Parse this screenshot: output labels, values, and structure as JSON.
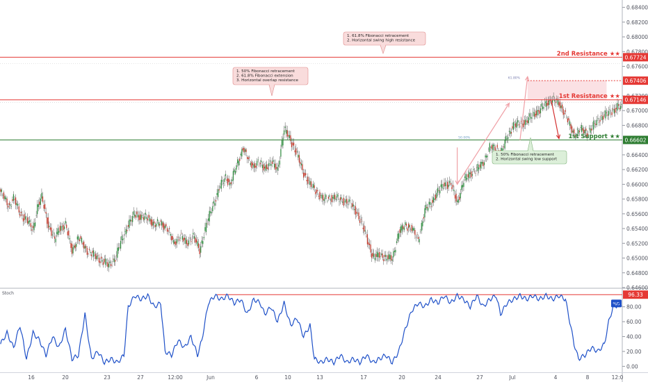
{
  "chart_data": [
    {
      "type": "candlestick",
      "title": "",
      "xlabel": "",
      "ylabel": "",
      "ylim": [
        0.646,
        0.685
      ],
      "y_ticks": [
        {
          "value": 0.684,
          "label": "0.68400"
        },
        {
          "value": 0.682,
          "label": "0.68200"
        },
        {
          "value": 0.68,
          "label": "0.68000"
        },
        {
          "value": 0.678,
          "label": "0.67800"
        },
        {
          "value": 0.676,
          "label": "0.67600"
        },
        {
          "value": 0.672,
          "label": "0.67200"
        },
        {
          "value": 0.67,
          "label": "0.67000"
        },
        {
          "value": 0.668,
          "label": "0.66800"
        },
        {
          "value": 0.664,
          "label": "0.66400"
        },
        {
          "value": 0.662,
          "label": "0.66200"
        },
        {
          "value": 0.66,
          "label": "0.66000"
        },
        {
          "value": 0.658,
          "label": "0.65800"
        },
        {
          "value": 0.656,
          "label": "0.65600"
        },
        {
          "value": 0.654,
          "label": "0.65400"
        },
        {
          "value": 0.652,
          "label": "0.65200"
        },
        {
          "value": 0.65,
          "label": "0.65000"
        },
        {
          "value": 0.648,
          "label": "0.64800"
        },
        {
          "value": 0.646,
          "label": "0.64600"
        }
      ],
      "x_ticks": [
        "16",
        "20",
        "23",
        "27",
        "12:00",
        "Jun",
        "6",
        "10",
        "13",
        "17",
        "20",
        "24",
        "27",
        "Jul",
        "4",
        "8",
        "12:0"
      ],
      "price_anchors": [
        [
          0,
          0.659
        ],
        [
          8,
          0.657
        ],
        [
          12,
          0.6582
        ],
        [
          18,
          0.656
        ],
        [
          25,
          0.655
        ],
        [
          30,
          0.6538
        ],
        [
          34,
          0.657
        ],
        [
          38,
          0.6582
        ],
        [
          44,
          0.6545
        ],
        [
          50,
          0.6525
        ],
        [
          54,
          0.654
        ],
        [
          60,
          0.6545
        ],
        [
          66,
          0.651
        ],
        [
          72,
          0.6528
        ],
        [
          80,
          0.651
        ],
        [
          90,
          0.65
        ],
        [
          100,
          0.649
        ],
        [
          106,
          0.65
        ],
        [
          112,
          0.6525
        ],
        [
          118,
          0.6545
        ],
        [
          124,
          0.656
        ],
        [
          130,
          0.6555
        ],
        [
          136,
          0.6555
        ],
        [
          142,
          0.6545
        ],
        [
          148,
          0.6548
        ],
        [
          154,
          0.654
        ],
        [
          160,
          0.652
        ],
        [
          166,
          0.653
        ],
        [
          172,
          0.652
        ],
        [
          178,
          0.653
        ],
        [
          184,
          0.651
        ],
        [
          190,
          0.6545
        ],
        [
          196,
          0.657
        ],
        [
          202,
          0.6595
        ],
        [
          208,
          0.661
        ],
        [
          212,
          0.66
        ],
        [
          218,
          0.6625
        ],
        [
          224,
          0.665
        ],
        [
          230,
          0.663
        ],
        [
          234,
          0.6625
        ],
        [
          238,
          0.663
        ],
        [
          244,
          0.6622
        ],
        [
          250,
          0.663
        ],
        [
          256,
          0.662
        ],
        [
          262,
          0.6675
        ],
        [
          268,
          0.666
        ],
        [
          274,
          0.664
        ],
        [
          280,
          0.6615
        ],
        [
          286,
          0.66
        ],
        [
          292,
          0.659
        ],
        [
          298,
          0.658
        ],
        [
          304,
          0.6582
        ],
        [
          310,
          0.6582
        ],
        [
          316,
          0.6578
        ],
        [
          322,
          0.6575
        ],
        [
          328,
          0.6565
        ],
        [
          334,
          0.6545
        ],
        [
          340,
          0.652
        ],
        [
          344,
          0.65
        ],
        [
          350,
          0.6505
        ],
        [
          356,
          0.65
        ],
        [
          362,
          0.65
        ],
        [
          368,
          0.6535
        ],
        [
          374,
          0.6545
        ],
        [
          380,
          0.654
        ],
        [
          386,
          0.6525
        ],
        [
          392,
          0.6565
        ],
        [
          398,
          0.6575
        ],
        [
          404,
          0.659
        ],
        [
          410,
          0.66
        ],
        [
          416,
          0.66
        ],
        [
          422,
          0.6575
        ],
        [
          428,
          0.6605
        ],
        [
          434,
          0.6615
        ],
        [
          440,
          0.662
        ],
        [
          446,
          0.663
        ],
        [
          452,
          0.665
        ],
        [
          458,
          0.665
        ],
        [
          462,
          0.664
        ],
        [
          468,
          0.6665
        ],
        [
          474,
          0.668
        ],
        [
          480,
          0.6682
        ],
        [
          486,
          0.6685
        ],
        [
          492,
          0.6695
        ],
        [
          498,
          0.67
        ],
        [
          504,
          0.671
        ],
        [
          510,
          0.6715
        ],
        [
          516,
          0.671
        ],
        [
          520,
          0.67
        ],
        [
          526,
          0.668
        ],
        [
          530,
          0.6668
        ],
        [
          536,
          0.6675
        ],
        [
          542,
          0.667
        ],
        [
          548,
          0.668
        ],
        [
          554,
          0.669
        ],
        [
          560,
          0.6695
        ],
        [
          566,
          0.67
        ],
        [
          570,
          0.6705
        ],
        [
          575,
          0.6703
        ]
      ],
      "levels": [
        {
          "label": "2nd Resistance ★★",
          "price_label": "0.67724",
          "value": 0.67724,
          "color": "#e53935"
        },
        {
          "label": "",
          "price_label": "0.67406",
          "value": 0.67406,
          "color": "#e53935"
        },
        {
          "label": "1st Resistance ★★",
          "price_label": "0.67146",
          "value": 0.67146,
          "color": "#e53935"
        },
        {
          "label": "1st Support ★★",
          "price_label": "0.66602",
          "value": 0.66602,
          "color": "#2e7d32"
        }
      ],
      "annotations": [
        {
          "lines": [
            "1. 61.8% Fibonacci retracement",
            "2. Horizontal swing high resistance"
          ],
          "style": "resistance"
        },
        {
          "lines": [
            "1. 50% Fibonacci retracement",
            "2. 61.8% Fibonacci extension",
            "3. Horizontal overlap resistance"
          ],
          "style": "resistance"
        },
        {
          "lines": [
            "1. 50% Fibonacci retracement",
            "2. Horizontal swing low support"
          ],
          "style": "support"
        }
      ],
      "fib_labels": [
        "61.80%",
        "50.00%"
      ]
    },
    {
      "type": "line",
      "title": "",
      "indicator": "Stoch",
      "series_label": "%D",
      "ylim": [
        -8,
        104
      ],
      "y_ticks": [
        {
          "value": 80,
          "label": "80.00"
        },
        {
          "value": 60,
          "label": "60.00"
        },
        {
          "value": 40,
          "label": "40.00"
        },
        {
          "value": 20,
          "label": "20.00"
        },
        {
          "value": 0,
          "label": "0.00"
        }
      ],
      "level": {
        "value": 96.33,
        "label": "96.33"
      },
      "x_ticks": [
        "16",
        "20",
        "23",
        "27",
        "12:00",
        "Jun",
        "6",
        "10",
        "13",
        "17",
        "20",
        "24",
        "27",
        "Jul",
        "4",
        "8",
        "12:0"
      ],
      "values_anchors": [
        [
          0,
          30
        ],
        [
          6,
          45
        ],
        [
          12,
          25
        ],
        [
          18,
          55
        ],
        [
          24,
          10
        ],
        [
          30,
          45
        ],
        [
          36,
          35
        ],
        [
          42,
          15
        ],
        [
          48,
          40
        ],
        [
          54,
          25
        ],
        [
          60,
          50
        ],
        [
          66,
          10
        ],
        [
          72,
          15
        ],
        [
          78,
          70
        ],
        [
          84,
          10
        ],
        [
          90,
          20
        ],
        [
          96,
          5
        ],
        [
          102,
          10
        ],
        [
          108,
          5
        ],
        [
          114,
          15
        ],
        [
          118,
          80
        ],
        [
          124,
          95
        ],
        [
          130,
          90
        ],
        [
          136,
          95
        ],
        [
          142,
          80
        ],
        [
          148,
          85
        ],
        [
          152,
          20
        ],
        [
          158,
          15
        ],
        [
          164,
          35
        ],
        [
          170,
          25
        ],
        [
          176,
          40
        ],
        [
          182,
          15
        ],
        [
          186,
          35
        ],
        [
          192,
          85
        ],
        [
          198,
          95
        ],
        [
          204,
          90
        ],
        [
          210,
          95
        ],
        [
          216,
          85
        ],
        [
          222,
          90
        ],
        [
          228,
          70
        ],
        [
          234,
          90
        ],
        [
          240,
          85
        ],
        [
          244,
          70
        ],
        [
          250,
          80
        ],
        [
          256,
          60
        ],
        [
          262,
          85
        ],
        [
          268,
          55
        ],
        [
          274,
          65
        ],
        [
          280,
          40
        ],
        [
          286,
          55
        ],
        [
          290,
          10
        ],
        [
          296,
          5
        ],
        [
          302,
          10
        ],
        [
          308,
          5
        ],
        [
          314,
          15
        ],
        [
          320,
          5
        ],
        [
          326,
          10
        ],
        [
          332,
          5
        ],
        [
          338,
          15
        ],
        [
          344,
          5
        ],
        [
          350,
          10
        ],
        [
          356,
          15
        ],
        [
          362,
          5
        ],
        [
          368,
          20
        ],
        [
          374,
          50
        ],
        [
          380,
          75
        ],
        [
          386,
          85
        ],
        [
          392,
          80
        ],
        [
          398,
          90
        ],
        [
          404,
          85
        ],
        [
          410,
          95
        ],
        [
          416,
          85
        ],
        [
          422,
          95
        ],
        [
          428,
          90
        ],
        [
          434,
          80
        ],
        [
          440,
          95
        ],
        [
          446,
          80
        ],
        [
          452,
          90
        ],
        [
          458,
          95
        ],
        [
          462,
          70
        ],
        [
          468,
          85
        ],
        [
          474,
          90
        ],
        [
          480,
          95
        ],
        [
          486,
          90
        ],
        [
          492,
          95
        ],
        [
          498,
          90
        ],
        [
          504,
          95
        ],
        [
          510,
          90
        ],
        [
          516,
          95
        ],
        [
          522,
          90
        ],
        [
          526,
          60
        ],
        [
          530,
          30
        ],
        [
          534,
          10
        ],
        [
          540,
          15
        ],
        [
          546,
          25
        ],
        [
          552,
          20
        ],
        [
          558,
          30
        ],
        [
          562,
          60
        ],
        [
          566,
          80
        ],
        [
          570,
          82
        ],
        [
          575,
          84
        ]
      ]
    }
  ]
}
